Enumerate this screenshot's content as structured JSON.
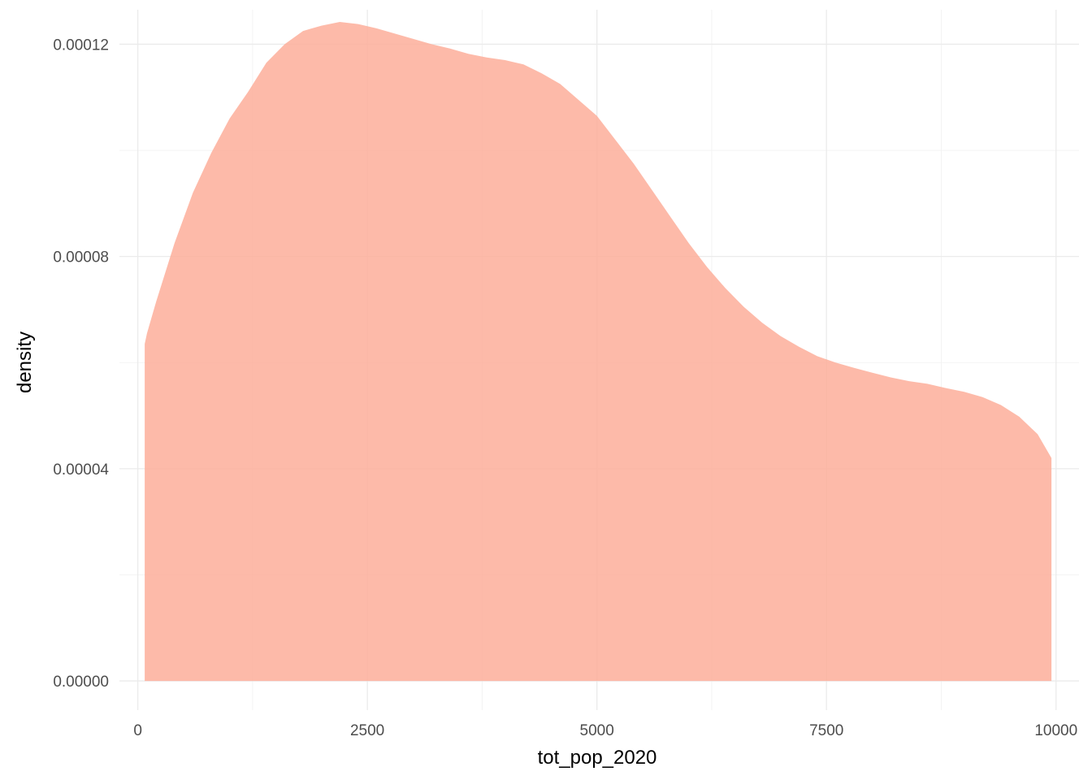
{
  "chart_data": {
    "type": "area",
    "title": "",
    "xlabel": "tot_pop_2020",
    "ylabel": "density",
    "xlim": [
      -200,
      10250
    ],
    "ylim": [
      -5.5e-06,
      0.0001265
    ],
    "x_ticks": [
      0,
      2500,
      5000,
      7500,
      10000
    ],
    "x_tick_labels": [
      "0",
      "2500",
      "5000",
      "7500",
      "10000"
    ],
    "y_ticks": [
      0,
      4e-05,
      8e-05,
      0.00012
    ],
    "y_tick_labels": [
      "0.00000",
      "0.00004",
      "0.00008",
      "0.00012"
    ],
    "grid": true,
    "legend": "none",
    "fill_color": "#fdae9a",
    "fill_opacity": 0.85,
    "series": [
      {
        "x": [
          75,
          100,
          200,
          400,
          600,
          800,
          1000,
          1200,
          1400,
          1600,
          1800,
          2000,
          2200,
          2400,
          2600,
          2800,
          3000,
          3200,
          3400,
          3600,
          3800,
          4000,
          4200,
          4400,
          4600,
          4800,
          5000,
          5200,
          5400,
          5600,
          5800,
          6000,
          6200,
          6400,
          6600,
          6800,
          7000,
          7200,
          7400,
          7600,
          7800,
          8000,
          8200,
          8400,
          8600,
          8800,
          9000,
          9200,
          9400,
          9600,
          9800,
          9950
        ],
        "y": [
          6.35e-05,
          6.55e-05,
          7.15e-05,
          8.25e-05,
          9.2e-05,
          9.95e-05,
          0.000106,
          0.000111,
          0.0001165,
          0.00012,
          0.0001225,
          0.0001235,
          0.0001242,
          0.0001238,
          0.000123,
          0.000122,
          0.000121,
          0.00012,
          0.0001192,
          0.0001182,
          0.0001175,
          0.000117,
          0.0001162,
          0.0001145,
          0.0001125,
          0.0001095,
          0.0001065,
          0.000102,
          9.75e-05,
          9.25e-05,
          8.75e-05,
          8.25e-05,
          7.8e-05,
          7.4e-05,
          7.05e-05,
          6.75e-05,
          6.5e-05,
          6.3e-05,
          6.12e-05,
          6e-05,
          5.9e-05,
          5.81e-05,
          5.72e-05,
          5.65e-05,
          5.6e-05,
          5.52e-05,
          5.45e-05,
          5.35e-05,
          5.2e-05,
          4.98e-05,
          4.65e-05,
          4.2e-05
        ]
      }
    ]
  }
}
